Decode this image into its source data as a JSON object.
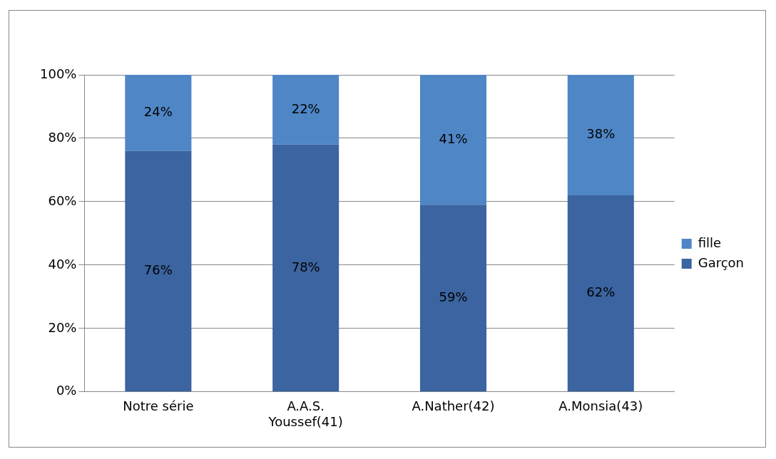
{
  "chart_data": {
    "type": "bar",
    "stacked": true,
    "categories": [
      "Notre série",
      "A.A.S. Youssef(41)",
      "A.Nather(42)",
      "A.Monsia(43)"
    ],
    "series": [
      {
        "name": "Garçon",
        "color": "#3b64a0",
        "values": [
          76,
          78,
          59,
          62
        ],
        "value_labels": [
          "76%",
          "78%",
          "59%",
          "62%"
        ]
      },
      {
        "name": "fille",
        "color": "#4f86c6",
        "values": [
          24,
          22,
          41,
          38
        ],
        "value_labels": [
          "24%",
          "22%",
          "41%",
          "38%"
        ]
      }
    ],
    "ylim": [
      0,
      100
    ],
    "yticks": [
      {
        "value": 0,
        "label": "0%"
      },
      {
        "value": 20,
        "label": "20%"
      },
      {
        "value": 40,
        "label": "40%"
      },
      {
        "value": 60,
        "label": "60%"
      },
      {
        "value": 80,
        "label": "80%"
      },
      {
        "value": 100,
        "label": "100%"
      }
    ],
    "grid": "y",
    "legend": "right"
  }
}
